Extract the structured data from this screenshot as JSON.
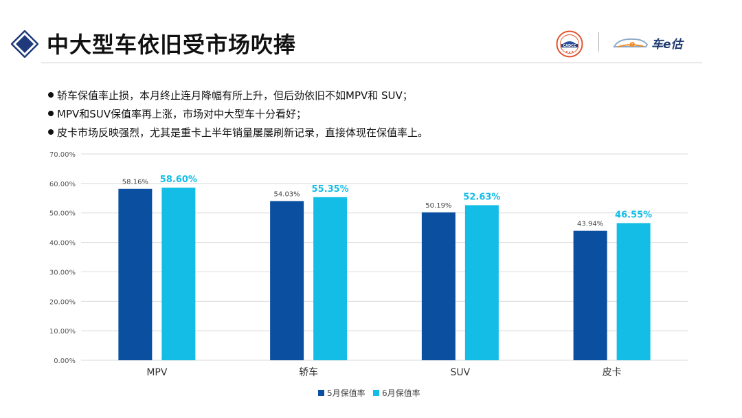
{
  "page": {
    "title": "中大型车依旧受市场吹捧",
    "logo_text": "CADCC",
    "brand_text": "车e估"
  },
  "bullets": [
    "轿车保值率止损，本月终止连月降幅有所上升，但后劲依旧不如MPV和 SUV；",
    "MPV和SUV保值率再上涨，市场对中大型车十分看好；",
    "皮卡市场反映强烈，尤其是重卡上半年销量屡屡刷新记录，直接体现在保值率上。"
  ],
  "colors": {
    "accent": "#1f3a7a",
    "may": "#0b4fa0",
    "june": "#13bde6"
  },
  "chart_data": {
    "type": "bar",
    "categories": [
      "MPV",
      "轿车",
      "SUV",
      "皮卡"
    ],
    "series": [
      {
        "name": "5月保值率",
        "values": [
          58.16,
          54.03,
          50.19,
          43.94
        ],
        "labels": [
          "58.16%",
          "54.03%",
          "50.19%",
          "43.94%"
        ]
      },
      {
        "name": "6月保值率",
        "values": [
          58.6,
          55.35,
          52.63,
          46.55
        ],
        "labels": [
          "58.60%",
          "55.35%",
          "52.63%",
          "46.55%"
        ]
      }
    ],
    "ylim": [
      0,
      70
    ],
    "yticks": [
      "0.00%",
      "10.00%",
      "20.00%",
      "30.00%",
      "40.00%",
      "50.00%",
      "60.00%",
      "70.00%"
    ],
    "grid": true,
    "legend": "bottom"
  }
}
